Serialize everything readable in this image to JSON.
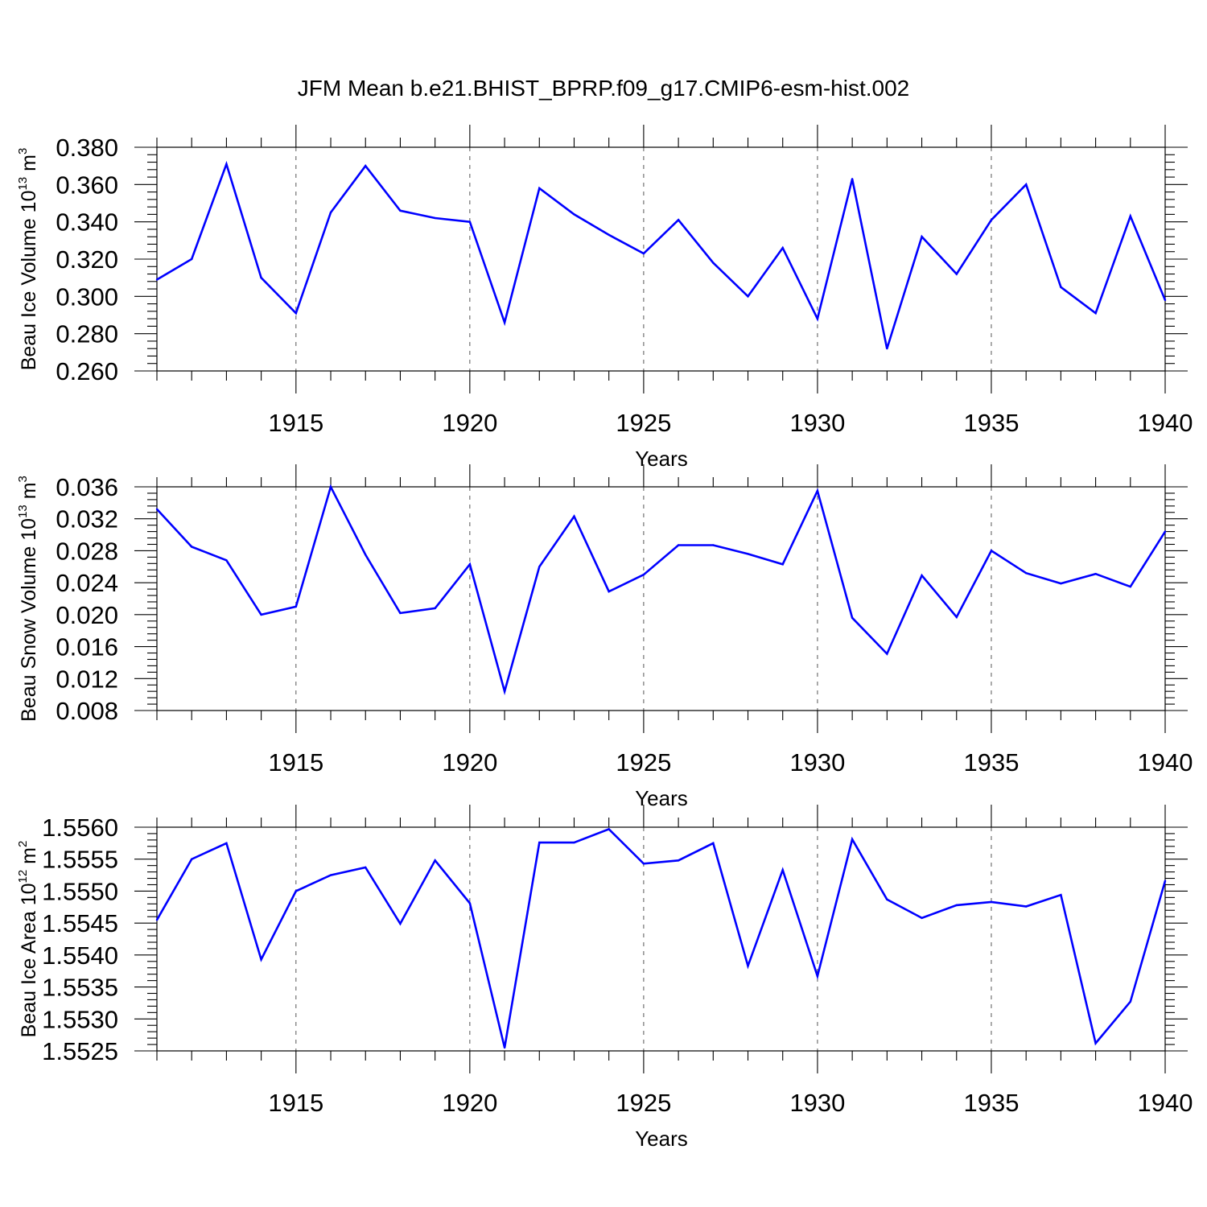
{
  "title": "JFM Mean b.e21.BHIST_BPRP.f09_g17.CMIP6-esm-hist.002",
  "colors": {
    "line": "#0000ff",
    "axis": "#000000"
  },
  "chart_data": [
    {
      "type": "line",
      "title": "JFM Mean b.e21.BHIST_BPRP.f09_g17.CMIP6-esm-hist.002",
      "xlabel": "Years",
      "ylabel": {
        "main": "Beau Ice Volume 10",
        "exponent": "13",
        "unit": "m",
        "unit_exponent": "3"
      },
      "xlim": [
        1911,
        1940
      ],
      "ylim": [
        0.26,
        0.38
      ],
      "xticks": [
        1915,
        1920,
        1925,
        1930,
        1935,
        1940
      ],
      "yticks": [
        "0.260",
        "0.280",
        "0.300",
        "0.320",
        "0.340",
        "0.360",
        "0.380"
      ],
      "grid": "dashed vertical at major x ticks",
      "x": [
        1911,
        1912,
        1913,
        1914,
        1915,
        1916,
        1917,
        1918,
        1919,
        1920,
        1921,
        1922,
        1923,
        1924,
        1925,
        1926,
        1927,
        1928,
        1929,
        1930,
        1931,
        1932,
        1933,
        1934,
        1935,
        1936,
        1937,
        1938,
        1939,
        1940
      ],
      "values": [
        0.309,
        0.32,
        0.371,
        0.31,
        0.291,
        0.345,
        0.37,
        0.346,
        0.342,
        0.34,
        0.286,
        0.358,
        0.344,
        0.333,
        0.323,
        0.341,
        0.318,
        0.3,
        0.326,
        0.288,
        0.363,
        0.272,
        0.332,
        0.312,
        0.341,
        0.36,
        0.305,
        0.291,
        0.343,
        0.298
      ]
    },
    {
      "type": "line",
      "xlabel": "Years",
      "ylabel": {
        "main": "Beau Snow Volume 10",
        "exponent": "13",
        "unit": "m",
        "unit_exponent": "3"
      },
      "xlim": [
        1911,
        1940
      ],
      "ylim": [
        0.008,
        0.036
      ],
      "xticks": [
        1915,
        1920,
        1925,
        1930,
        1935,
        1940
      ],
      "yticks": [
        "0.008",
        "0.012",
        "0.016",
        "0.020",
        "0.024",
        "0.028",
        "0.032",
        "0.036"
      ],
      "grid": "dashed vertical at major x ticks",
      "x": [
        1911,
        1912,
        1913,
        1914,
        1915,
        1916,
        1917,
        1918,
        1919,
        1920,
        1921,
        1922,
        1923,
        1924,
        1925,
        1926,
        1927,
        1928,
        1929,
        1930,
        1931,
        1932,
        1933,
        1934,
        1935,
        1936,
        1937,
        1938,
        1939,
        1940
      ],
      "values": [
        0.0332,
        0.0285,
        0.0268,
        0.02,
        0.021,
        0.036,
        0.0275,
        0.0202,
        0.0208,
        0.0263,
        0.0104,
        0.026,
        0.0323,
        0.0229,
        0.025,
        0.0287,
        0.0287,
        0.0276,
        0.0263,
        0.0355,
        0.0196,
        0.0151,
        0.0249,
        0.0197,
        0.028,
        0.0252,
        0.0239,
        0.0251,
        0.0235,
        0.0304
      ]
    },
    {
      "type": "line",
      "xlabel": "Years",
      "ylabel": {
        "main": "Beau Ice Area 10",
        "exponent": "12",
        "unit": "m",
        "unit_exponent": "2"
      },
      "xlim": [
        1911,
        1940
      ],
      "ylim": [
        1.5525,
        1.556
      ],
      "xticks": [
        1915,
        1920,
        1925,
        1930,
        1935,
        1940
      ],
      "yticks": [
        "1.5525",
        "1.5530",
        "1.5535",
        "1.5540",
        "1.5545",
        "1.5550",
        "1.5555",
        "1.5560"
      ],
      "grid": "dashed vertical at major x ticks",
      "x": [
        1911,
        1912,
        1913,
        1914,
        1915,
        1916,
        1917,
        1918,
        1919,
        1920,
        1921,
        1922,
        1923,
        1924,
        1925,
        1926,
        1927,
        1928,
        1929,
        1930,
        1931,
        1932,
        1933,
        1934,
        1935,
        1936,
        1937,
        1938,
        1939,
        1940
      ],
      "values": [
        1.55455,
        1.5555,
        1.55575,
        1.55393,
        1.555,
        1.55525,
        1.55537,
        1.55449,
        1.55548,
        1.55481,
        1.55255,
        1.55576,
        1.55576,
        1.55597,
        1.55543,
        1.55548,
        1.55575,
        1.55383,
        1.55533,
        1.55367,
        1.55581,
        1.55487,
        1.55458,
        1.55478,
        1.55483,
        1.55476,
        1.55494,
        1.55262,
        1.55327,
        1.55516
      ]
    }
  ]
}
